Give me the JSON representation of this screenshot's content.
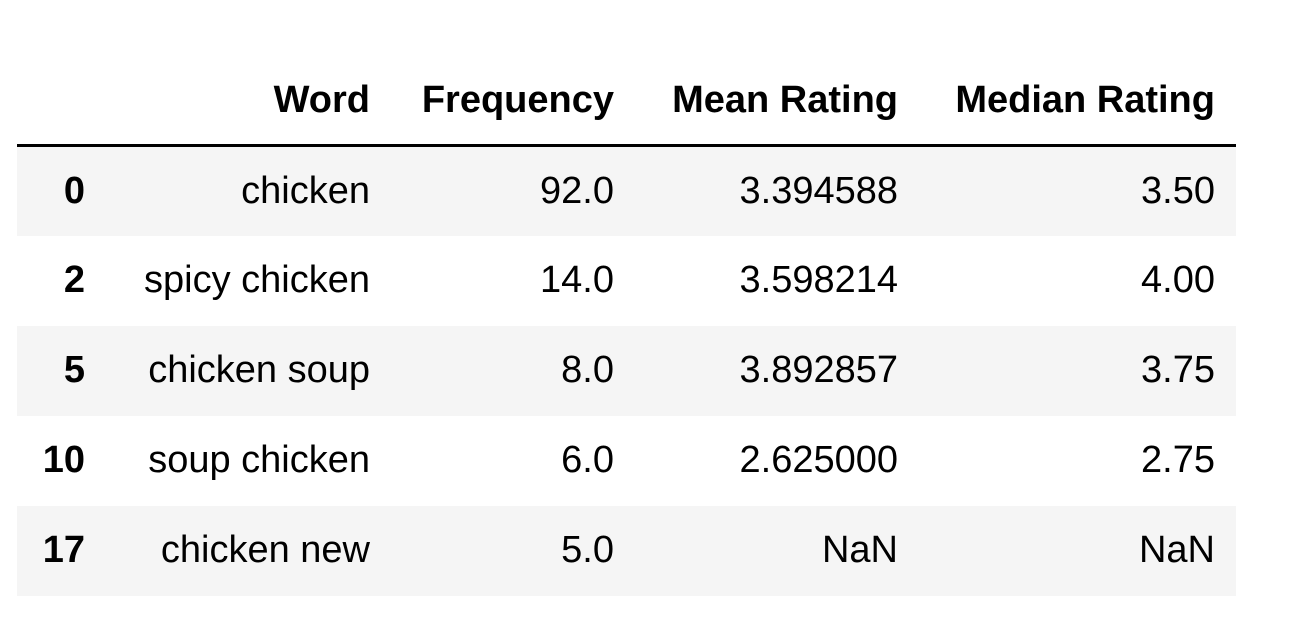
{
  "table": {
    "index_header": "",
    "columns": [
      "Word",
      "Frequency",
      "Mean Rating",
      "Median Rating"
    ],
    "rows": [
      {
        "index": "0",
        "word": "chicken",
        "frequency": "92.0",
        "mean_rating": "3.394588",
        "median_rating": "3.50"
      },
      {
        "index": "2",
        "word": "spicy chicken",
        "frequency": "14.0",
        "mean_rating": "3.598214",
        "median_rating": "4.00"
      },
      {
        "index": "5",
        "word": "chicken soup",
        "frequency": "8.0",
        "mean_rating": "3.892857",
        "median_rating": "3.75"
      },
      {
        "index": "10",
        "word": "soup chicken",
        "frequency": "6.0",
        "mean_rating": "2.625000",
        "median_rating": "2.75"
      },
      {
        "index": "17",
        "word": "chicken new",
        "frequency": "5.0",
        "mean_rating": "NaN",
        "median_rating": "NaN"
      }
    ]
  },
  "colors": {
    "stripe": "#f5f5f5",
    "background": "#ffffff",
    "text": "#000000",
    "header_rule": "#000000"
  }
}
